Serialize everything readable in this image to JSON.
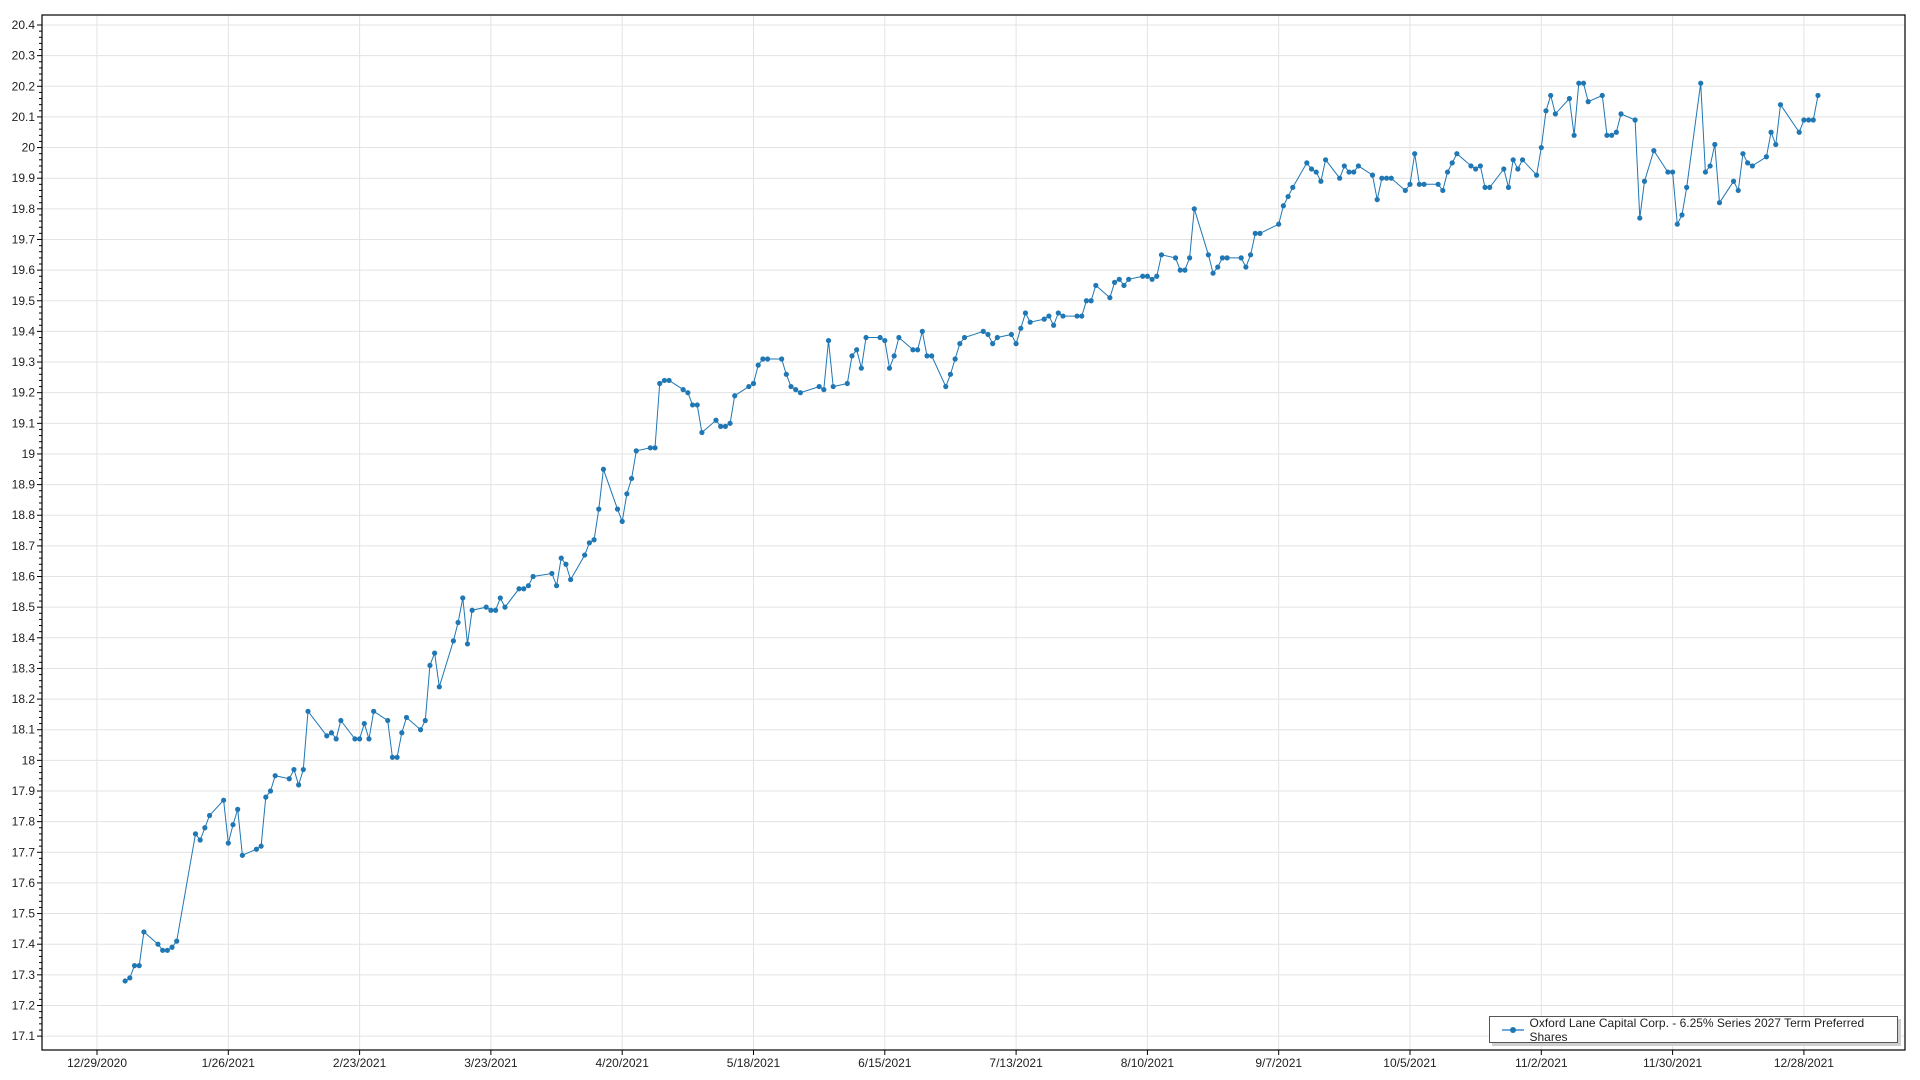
{
  "chart_data": {
    "type": "line",
    "title": "",
    "xlabel": "",
    "ylabel": "",
    "ylim": [
      17.1,
      20.4
    ],
    "ytick_step": 0.1,
    "xticks": [
      "12/29/2020",
      "1/26/2021",
      "2/23/2021",
      "3/23/2021",
      "4/20/2021",
      "5/18/2021",
      "6/15/2021",
      "7/13/2021",
      "8/10/2021",
      "9/7/2021",
      "10/5/2021",
      "11/2/2021",
      "11/30/2021",
      "12/28/2021"
    ],
    "grid": true,
    "legend_position": "bottom-right",
    "series": [
      {
        "name": "Oxford Lane Capital Corp. - 6.25% Series 2027 Term Preferred Shares",
        "color": "#1f77b4",
        "x": [
          "2021-01-04",
          "2021-01-05",
          "2021-01-06",
          "2021-01-07",
          "2021-01-08",
          "2021-01-11",
          "2021-01-12",
          "2021-01-13",
          "2021-01-14",
          "2021-01-15",
          "2021-01-19",
          "2021-01-20",
          "2021-01-21",
          "2021-01-22",
          "2021-01-25",
          "2021-01-26",
          "2021-01-27",
          "2021-01-28",
          "2021-01-29",
          "2021-02-01",
          "2021-02-02",
          "2021-02-03",
          "2021-02-04",
          "2021-02-05",
          "2021-02-08",
          "2021-02-09",
          "2021-02-10",
          "2021-02-11",
          "2021-02-12",
          "2021-02-16",
          "2021-02-17",
          "2021-02-18",
          "2021-02-19",
          "2021-02-22",
          "2021-02-23",
          "2021-02-24",
          "2021-02-25",
          "2021-02-26",
          "2021-03-01",
          "2021-03-02",
          "2021-03-03",
          "2021-03-04",
          "2021-03-05",
          "2021-03-08",
          "2021-03-09",
          "2021-03-10",
          "2021-03-11",
          "2021-03-12",
          "2021-03-15",
          "2021-03-16",
          "2021-03-17",
          "2021-03-18",
          "2021-03-19",
          "2021-03-22",
          "2021-03-23",
          "2021-03-24",
          "2021-03-25",
          "2021-03-26",
          "2021-03-29",
          "2021-03-30",
          "2021-03-31",
          "2021-04-01",
          "2021-04-05",
          "2021-04-06",
          "2021-04-07",
          "2021-04-08",
          "2021-04-09",
          "2021-04-12",
          "2021-04-13",
          "2021-04-14",
          "2021-04-15",
          "2021-04-16",
          "2021-04-19",
          "2021-04-20",
          "2021-04-21",
          "2021-04-22",
          "2021-04-23",
          "2021-04-26",
          "2021-04-27",
          "2021-04-28",
          "2021-04-29",
          "2021-04-30",
          "2021-05-03",
          "2021-05-04",
          "2021-05-05",
          "2021-05-06",
          "2021-05-07",
          "2021-05-10",
          "2021-05-11",
          "2021-05-12",
          "2021-05-13",
          "2021-05-14",
          "2021-05-17",
          "2021-05-18",
          "2021-05-19",
          "2021-05-20",
          "2021-05-21",
          "2021-05-24",
          "2021-05-25",
          "2021-05-26",
          "2021-05-27",
          "2021-05-28",
          "2021-06-01",
          "2021-06-02",
          "2021-06-03",
          "2021-06-04",
          "2021-06-07",
          "2021-06-08",
          "2021-06-09",
          "2021-06-10",
          "2021-06-11",
          "2021-06-14",
          "2021-06-15",
          "2021-06-16",
          "2021-06-17",
          "2021-06-18",
          "2021-06-21",
          "2021-06-22",
          "2021-06-23",
          "2021-06-24",
          "2021-06-25",
          "2021-06-28",
          "2021-06-29",
          "2021-06-30",
          "2021-07-01",
          "2021-07-02",
          "2021-07-06",
          "2021-07-07",
          "2021-07-08",
          "2021-07-09",
          "2021-07-12",
          "2021-07-13",
          "2021-07-14",
          "2021-07-15",
          "2021-07-16",
          "2021-07-19",
          "2021-07-20",
          "2021-07-21",
          "2021-07-22",
          "2021-07-23",
          "2021-07-26",
          "2021-07-27",
          "2021-07-28",
          "2021-07-29",
          "2021-07-30",
          "2021-08-02",
          "2021-08-03",
          "2021-08-04",
          "2021-08-05",
          "2021-08-06",
          "2021-08-09",
          "2021-08-10",
          "2021-08-11",
          "2021-08-12",
          "2021-08-13",
          "2021-08-16",
          "2021-08-17",
          "2021-08-18",
          "2021-08-19",
          "2021-08-20",
          "2021-08-23",
          "2021-08-24",
          "2021-08-25",
          "2021-08-26",
          "2021-08-27",
          "2021-08-30",
          "2021-08-31",
          "2021-09-01",
          "2021-09-02",
          "2021-09-03",
          "2021-09-07",
          "2021-09-08",
          "2021-09-09",
          "2021-09-10",
          "2021-09-13",
          "2021-09-14",
          "2021-09-15",
          "2021-09-16",
          "2021-09-17",
          "2021-09-20",
          "2021-09-21",
          "2021-09-22",
          "2021-09-23",
          "2021-09-24",
          "2021-09-27",
          "2021-09-28",
          "2021-09-29",
          "2021-09-30",
          "2021-10-01",
          "2021-10-04",
          "2021-10-05",
          "2021-10-06",
          "2021-10-07",
          "2021-10-08",
          "2021-10-11",
          "2021-10-12",
          "2021-10-13",
          "2021-10-14",
          "2021-10-15",
          "2021-10-18",
          "2021-10-19",
          "2021-10-20",
          "2021-10-21",
          "2021-10-22",
          "2021-10-25",
          "2021-10-26",
          "2021-10-27",
          "2021-10-28",
          "2021-10-29",
          "2021-11-01",
          "2021-11-02",
          "2021-11-03",
          "2021-11-04",
          "2021-11-05",
          "2021-11-08",
          "2021-11-09",
          "2021-11-10",
          "2021-11-11",
          "2021-11-12",
          "2021-11-15",
          "2021-11-16",
          "2021-11-17",
          "2021-11-18",
          "2021-11-19",
          "2021-11-22",
          "2021-11-23",
          "2021-11-24",
          "2021-11-26",
          "2021-11-29",
          "2021-11-30",
          "2021-12-01",
          "2021-12-02",
          "2021-12-03",
          "2021-12-06",
          "2021-12-07",
          "2021-12-08",
          "2021-12-09",
          "2021-12-10",
          "2021-12-13",
          "2021-12-14",
          "2021-12-15",
          "2021-12-16",
          "2021-12-17",
          "2021-12-20",
          "2021-12-21",
          "2021-12-22",
          "2021-12-23",
          "2021-12-27",
          "2021-12-28",
          "2021-12-29",
          "2021-12-30",
          "2021-12-31"
        ],
        "y": [
          17.28,
          17.29,
          17.33,
          17.33,
          17.44,
          17.4,
          17.38,
          17.38,
          17.39,
          17.41,
          17.76,
          17.74,
          17.78,
          17.82,
          17.87,
          17.73,
          17.79,
          17.84,
          17.69,
          17.71,
          17.72,
          17.88,
          17.9,
          17.95,
          17.94,
          17.97,
          17.92,
          17.97,
          18.16,
          18.08,
          18.09,
          18.07,
          18.13,
          18.07,
          18.07,
          18.12,
          18.07,
          18.16,
          18.13,
          18.01,
          18.01,
          18.09,
          18.14,
          18.1,
          18.13,
          18.31,
          18.35,
          18.24,
          18.39,
          18.45,
          18.53,
          18.38,
          18.49,
          18.5,
          18.49,
          18.49,
          18.53,
          18.5,
          18.56,
          18.56,
          18.57,
          18.6,
          18.61,
          18.57,
          18.66,
          18.64,
          18.59,
          18.67,
          18.71,
          18.72,
          18.82,
          18.95,
          18.82,
          18.78,
          18.87,
          18.92,
          19.01,
          19.02,
          19.02,
          19.23,
          19.24,
          19.24,
          19.21,
          19.2,
          19.16,
          19.16,
          19.07,
          19.11,
          19.09,
          19.09,
          19.1,
          19.19,
          19.22,
          19.23,
          19.29,
          19.31,
          19.31,
          19.31,
          19.26,
          19.22,
          19.21,
          19.2,
          19.22,
          19.21,
          19.37,
          19.22,
          19.23,
          19.32,
          19.34,
          19.28,
          19.38,
          19.38,
          19.37,
          19.28,
          19.32,
          19.38,
          19.34,
          19.34,
          19.4,
          19.32,
          19.32,
          19.22,
          19.26,
          19.31,
          19.36,
          19.38,
          19.4,
          19.39,
          19.36,
          19.38,
          19.39,
          19.36,
          19.41,
          19.46,
          19.43,
          19.44,
          19.45,
          19.42,
          19.46,
          19.45,
          19.45,
          19.45,
          19.5,
          19.5,
          19.55,
          19.51,
          19.56,
          19.57,
          19.55,
          19.57,
          19.58,
          19.58,
          19.57,
          19.58,
          19.65,
          19.64,
          19.6,
          19.6,
          19.64,
          19.8,
          19.65,
          19.59,
          19.61,
          19.64,
          19.64,
          19.64,
          19.61,
          19.65,
          19.72,
          19.72,
          19.75,
          19.81,
          19.84,
          19.87,
          19.95,
          19.93,
          19.92,
          19.89,
          19.96,
          19.9,
          19.94,
          19.92,
          19.92,
          19.94,
          19.91,
          19.83,
          19.9,
          19.9,
          19.9,
          19.86,
          19.88,
          19.98,
          19.88,
          19.88,
          19.88,
          19.86,
          19.92,
          19.95,
          19.98,
          19.94,
          19.93,
          19.94,
          19.87,
          19.87,
          19.93,
          19.87,
          19.96,
          19.93,
          19.96,
          19.91,
          20.0,
          20.12,
          20.17,
          20.11,
          20.16,
          20.04,
          20.21,
          20.21,
          20.15,
          20.17,
          20.04,
          20.04,
          20.05,
          20.11,
          20.09,
          19.77,
          19.89,
          19.99,
          19.92,
          19.92,
          19.75,
          19.78,
          19.87,
          20.21,
          19.92,
          19.94,
          20.01,
          19.82,
          19.89,
          19.86,
          19.98,
          19.95,
          19.94,
          19.97,
          20.05,
          20.01,
          20.14,
          20.05,
          20.09,
          20.09,
          20.09,
          20.17
        ]
      }
    ]
  }
}
